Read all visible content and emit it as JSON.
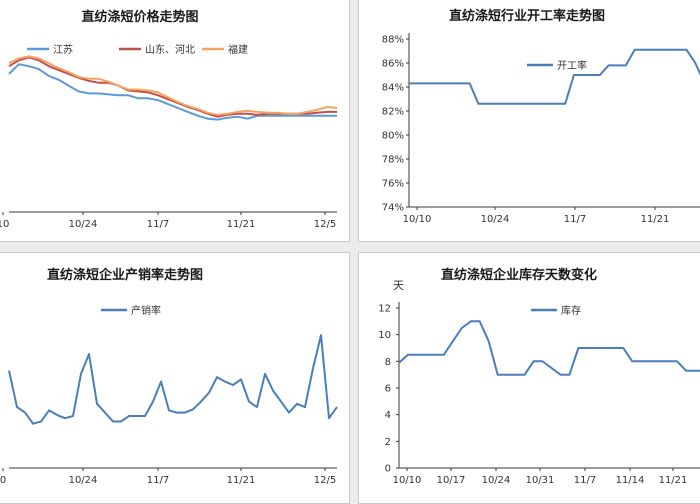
{
  "chart_data": [
    {
      "type": "line",
      "title": "直纺涤短价格走势图",
      "x_labels": [
        "10",
        "10/24",
        "11/7",
        "11/21",
        "12/5"
      ],
      "series": [
        {
          "name": "江苏",
          "color": "#5b9bd5",
          "values": [
            7420,
            7520,
            7500,
            7470,
            7400,
            7360,
            7300,
            7240,
            7220,
            7220,
            7210,
            7200,
            7200,
            7170,
            7170,
            7150,
            7110,
            7070,
            7030,
            6990,
            6960,
            6950,
            6970,
            6980,
            6960,
            6990,
            6990,
            6990,
            6990,
            6990,
            6990,
            6990,
            6990,
            6990
          ]
        },
        {
          "name": "山东、河北",
          "color": "#c0504d",
          "values": [
            7500,
            7560,
            7590,
            7560,
            7500,
            7460,
            7420,
            7380,
            7350,
            7330,
            7330,
            7300,
            7250,
            7240,
            7230,
            7200,
            7160,
            7120,
            7080,
            7050,
            7010,
            6980,
            7000,
            7010,
            7010,
            7000,
            7010,
            7010,
            7010,
            7010,
            7010,
            7020,
            7030,
            7030
          ]
        },
        {
          "name": "福建",
          "color": "#f4a460",
          "values": [
            7530,
            7580,
            7600,
            7580,
            7530,
            7480,
            7440,
            7390,
            7370,
            7370,
            7340,
            7300,
            7260,
            7260,
            7250,
            7230,
            7180,
            7130,
            7090,
            7060,
            7020,
            7000,
            7010,
            7030,
            7040,
            7030,
            7020,
            7020,
            7010,
            7010,
            7030,
            7050,
            7080,
            7070
          ]
        }
      ],
      "ylim": [
        6000,
        7800
      ],
      "legend": "top"
    },
    {
      "type": "line",
      "title": "直纺涤短行业开工率走势图",
      "x_labels": [
        "10/10",
        "10/24",
        "11/7",
        "11/21"
      ],
      "y_ticks": [
        "74%",
        "76%",
        "78%",
        "80%",
        "82%",
        "84%",
        "86%",
        "88%"
      ],
      "ylim": [
        74,
        88
      ],
      "series": [
        {
          "name": "开工率",
          "color": "#4a7ebb",
          "values": [
            84.3,
            84.3,
            84.3,
            84.3,
            84.3,
            84.3,
            84.3,
            84.3,
            82.6,
            82.6,
            82.6,
            82.6,
            82.6,
            82.6,
            82.6,
            82.6,
            82.6,
            82.6,
            82.6,
            85.0,
            85.0,
            85.0,
            85.0,
            85.8,
            85.8,
            85.8,
            87.1,
            87.1,
            87.1,
            87.1,
            87.1,
            87.1,
            87.1,
            86.0,
            84.4
          ]
        }
      ],
      "legend": "top-left"
    },
    {
      "type": "line",
      "title": "直纺涤短企业产销率走势图",
      "x_labels": [
        "0",
        "10/24",
        "11/7",
        "11/21",
        "12/5"
      ],
      "series": [
        {
          "name": "产销率",
          "color": "#4a7ebb",
          "values": [
            88,
            55,
            50,
            40,
            42,
            52,
            48,
            45,
            47,
            85,
            103,
            58,
            50,
            42,
            42,
            47,
            47,
            47,
            60,
            78,
            52,
            50,
            50,
            53,
            60,
            68,
            82,
            78,
            75,
            80,
            60,
            55,
            85,
            70,
            60,
            50,
            58,
            55,
            90,
            120,
            45,
            55
          ]
        }
      ],
      "ylim": [
        0,
        140
      ],
      "legend": "top"
    },
    {
      "type": "line",
      "title": "直纺涤短企业库存天数变化",
      "ylabel": "天",
      "x_labels": [
        "10/10",
        "10/17",
        "10/24",
        "10/31",
        "11/7",
        "11/14",
        "11/21"
      ],
      "y_ticks": [
        "0",
        "2",
        "4",
        "6",
        "8",
        "10",
        "12"
      ],
      "ylim": [
        0,
        12
      ],
      "series": [
        {
          "name": "库存",
          "color": "#4a7ebb",
          "values": [
            7.9,
            8.5,
            8.5,
            8.5,
            8.5,
            8.5,
            9.5,
            10.5,
            11.0,
            11.0,
            9.5,
            7.0,
            7.0,
            7.0,
            7.0,
            8.0,
            8.0,
            7.5,
            7.0,
            7.0,
            9.0,
            9.0,
            9.0,
            9.0,
            9.0,
            9.0,
            8.0,
            8.0,
            8.0,
            8.0,
            8.0,
            8.0,
            7.3,
            7.3,
            7.3
          ]
        }
      ],
      "legend": "top"
    }
  ]
}
